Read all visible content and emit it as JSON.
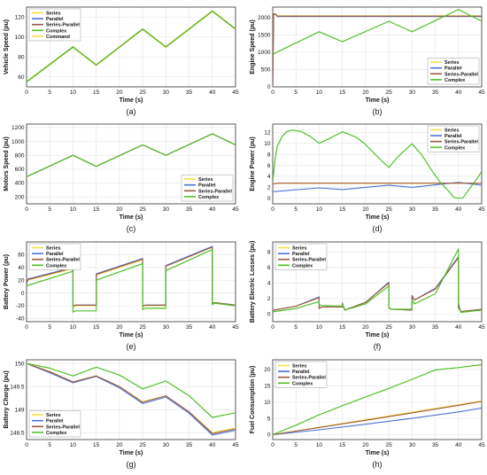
{
  "figure": {
    "xlabel": "Time (s)",
    "xticks": [
      "0",
      "5",
      "10",
      "15",
      "20",
      "25",
      "30",
      "35",
      "40",
      "45"
    ]
  },
  "colors": {
    "Command": "#f5e04a",
    "Series": "#f5e04a",
    "Parallel": "#4a72d8",
    "Series-Parallel": "#9c5a3c",
    "Complex": "#52bf2a"
  },
  "chart_data": [
    {
      "id": "a",
      "panel_label": "(a)",
      "type": "line",
      "ylabel": "Vehicle Speed (pu)",
      "xlim": [
        0,
        45
      ],
      "ylim": [
        50,
        130
      ],
      "yticks": [
        "60",
        "80",
        "100",
        "120"
      ],
      "grid": true,
      "series": [
        {
          "name": "Command",
          "x": [
            0,
            10,
            15,
            25,
            30,
            40,
            45
          ],
          "y": [
            55,
            90,
            72,
            108,
            90,
            126,
            108
          ]
        },
        {
          "name": "Series",
          "x": [
            0,
            10,
            15,
            25,
            30,
            40,
            45
          ],
          "y": [
            55,
            90,
            72,
            108,
            90,
            126,
            108
          ]
        },
        {
          "name": "Parallel",
          "x": [
            0,
            10,
            15,
            25,
            30,
            40,
            45
          ],
          "y": [
            55,
            90,
            72,
            108,
            90,
            126,
            108
          ]
        },
        {
          "name": "Series-Parallel",
          "x": [
            0,
            10,
            15,
            25,
            30,
            40,
            45
          ],
          "y": [
            55,
            90,
            72,
            108,
            90,
            126,
            108
          ]
        },
        {
          "name": "Complex",
          "x": [
            0,
            10,
            15,
            25,
            30,
            40,
            45
          ],
          "y": [
            55,
            90,
            72,
            108,
            90,
            126,
            108
          ]
        }
      ]
    },
    {
      "id": "b",
      "panel_label": "(b)",
      "type": "line",
      "ylabel": "Engine Speed (pu)",
      "xlim": [
        0,
        45
      ],
      "ylim": [
        0,
        2300
      ],
      "yticks": [
        "0",
        "500",
        "1000",
        "1500",
        "2000"
      ],
      "grid": true,
      "series": [
        {
          "name": "Series",
          "x": [
            0,
            0.2,
            0.5,
            1,
            45
          ],
          "y": [
            0,
            2100,
            2120,
            2050,
            2050
          ]
        },
        {
          "name": "Parallel",
          "x": [
            0,
            0.2,
            0.5,
            1,
            45
          ],
          "y": [
            0,
            2080,
            2100,
            2030,
            2030
          ]
        },
        {
          "name": "Series-Parallel",
          "x": [
            0,
            0.2,
            0.5,
            1,
            45
          ],
          "y": [
            0,
            2090,
            2110,
            2040,
            2040
          ]
        },
        {
          "name": "Complex",
          "x": [
            0,
            10,
            15,
            25,
            30,
            40,
            45
          ],
          "y": [
            940,
            1590,
            1300,
            1890,
            1590,
            2230,
            1890
          ]
        }
      ]
    },
    {
      "id": "c",
      "panel_label": "(c)",
      "type": "line",
      "ylabel": "Motors Speed (pu)",
      "xlim": [
        0,
        45
      ],
      "ylim": [
        100,
        1250
      ],
      "yticks": [
        "200",
        "400",
        "600",
        "800",
        "1000",
        "1200"
      ],
      "grid": true,
      "series": [
        {
          "name": "Series",
          "x": [
            0,
            10,
            15,
            25,
            30,
            40,
            45
          ],
          "y": [
            490,
            800,
            640,
            950,
            800,
            1110,
            950
          ]
        },
        {
          "name": "Parallel",
          "x": [
            0,
            10,
            15,
            25,
            30,
            40,
            45
          ],
          "y": [
            490,
            800,
            640,
            950,
            800,
            1110,
            950
          ]
        },
        {
          "name": "Series-Parallel",
          "x": [
            0,
            10,
            15,
            25,
            30,
            40,
            45
          ],
          "y": [
            490,
            800,
            640,
            950,
            800,
            1110,
            950
          ]
        },
        {
          "name": "Complex",
          "x": [
            0,
            10,
            15,
            25,
            30,
            40,
            45
          ],
          "y": [
            490,
            800,
            640,
            950,
            800,
            1110,
            950
          ]
        }
      ]
    },
    {
      "id": "d",
      "panel_label": "(d)",
      "type": "line",
      "ylabel": "Engine Power (pu)",
      "xlim": [
        0,
        45
      ],
      "ylim": [
        -1,
        13.5
      ],
      "yticks": [
        "0",
        "2",
        "4",
        "6",
        "8",
        "10",
        "12"
      ],
      "grid": true,
      "series": [
        {
          "name": "Series",
          "x": [
            0,
            1,
            45
          ],
          "y": [
            2.6,
            2.7,
            2.7
          ]
        },
        {
          "name": "Parallel",
          "x": [
            0,
            10,
            15,
            25,
            30,
            40,
            45
          ],
          "y": [
            1.2,
            1.9,
            1.6,
            2.4,
            2.0,
            2.9,
            2.4
          ]
        },
        {
          "name": "Series-Parallel",
          "x": [
            0,
            1,
            45
          ],
          "y": [
            2.6,
            2.75,
            2.75
          ]
        },
        {
          "name": "Complex",
          "x": [
            0,
            0.5,
            1,
            2,
            3,
            4,
            6,
            8,
            10,
            12,
            15,
            18,
            20,
            22,
            25,
            27,
            30,
            32,
            34,
            36,
            38,
            39,
            40,
            41,
            42,
            44,
            45
          ],
          "y": [
            3,
            7,
            9.5,
            11.2,
            12.1,
            12.4,
            12.2,
            11.3,
            10,
            10.8,
            12.1,
            11.1,
            9.8,
            8,
            5.6,
            7.6,
            9.9,
            8,
            5.4,
            3,
            1.2,
            0.2,
            0,
            0.1,
            1.3,
            3.6,
            4.9
          ]
        }
      ]
    },
    {
      "id": "e",
      "panel_label": "(e)",
      "type": "line",
      "ylabel": "Battery Power (pu)",
      "xlim": [
        0,
        45
      ],
      "ylim": [
        -45,
        80
      ],
      "yticks": [
        "-40",
        "-20",
        "0",
        "20",
        "40",
        "60"
      ],
      "grid": true,
      "series": [
        {
          "name": "Series",
          "x": [
            0,
            0.3,
            10,
            10,
            10.5,
            15,
            15,
            25,
            25,
            25.5,
            30,
            30,
            40,
            40,
            40.5,
            45
          ],
          "y": [
            15,
            20,
            38,
            -22,
            -20,
            -20,
            28,
            52,
            -22,
            -20,
            -20,
            42,
            72,
            -18,
            -16,
            -20
          ]
        },
        {
          "name": "Parallel",
          "x": [
            0,
            0.3,
            10,
            10,
            10.5,
            15,
            15,
            25,
            25,
            25.5,
            30,
            30,
            40,
            40,
            40.5,
            45
          ],
          "y": [
            15,
            22,
            40,
            -21,
            -19,
            -19,
            30,
            54,
            -21,
            -19,
            -19,
            43,
            73,
            -17,
            -15,
            -19
          ]
        },
        {
          "name": "Series-Parallel",
          "x": [
            0,
            0.3,
            10,
            10,
            10.5,
            15,
            15,
            25,
            25,
            25.5,
            30,
            30,
            40,
            40,
            40.5,
            45
          ],
          "y": [
            15,
            21,
            39,
            -21,
            -19,
            -19,
            29,
            53,
            -21,
            -19,
            -19,
            42,
            72,
            -17,
            -15,
            -19
          ]
        },
        {
          "name": "Complex",
          "x": [
            0,
            0.3,
            10,
            10,
            10.5,
            15,
            15,
            25,
            25,
            25.5,
            30,
            30,
            40,
            40,
            40.5,
            45
          ],
          "y": [
            10,
            12,
            34,
            -30,
            -28,
            -28,
            20,
            46,
            -26,
            -24,
            -24,
            35,
            68,
            -18,
            -16,
            -20
          ]
        }
      ]
    },
    {
      "id": "f",
      "panel_label": "(f)",
      "type": "line",
      "ylabel": "Battery Electric Losses (pu)",
      "xlim": [
        0,
        45
      ],
      "ylim": [
        -1,
        9.3
      ],
      "yticks": [
        "0",
        "2",
        "4",
        "6",
        "8"
      ],
      "grid": true,
      "series": [
        {
          "name": "Series",
          "x": [
            0,
            0.3,
            5,
            10,
            10,
            10.5,
            15,
            15,
            15.5,
            20,
            25,
            25,
            25.5,
            30,
            30,
            30.5,
            35,
            40,
            40,
            40.5,
            45
          ],
          "y": [
            0.4,
            0.5,
            1.0,
            2.1,
            0.7,
            0.9,
            0.9,
            1.4,
            0.5,
            1.5,
            4.0,
            0.8,
            0.6,
            0.5,
            2.3,
            1.8,
            3.2,
            7.3,
            0.8,
            0.3,
            0.6
          ]
        },
        {
          "name": "Parallel",
          "x": [
            0,
            0.3,
            5,
            10,
            10,
            10.5,
            15,
            15,
            15.5,
            20,
            25,
            25,
            25.5,
            30,
            30,
            30.5,
            35,
            40,
            40,
            40.5,
            45
          ],
          "y": [
            0.4,
            0.5,
            1.0,
            2.2,
            0.7,
            0.9,
            0.9,
            1.4,
            0.5,
            1.5,
            4.1,
            0.8,
            0.6,
            0.5,
            2.4,
            1.8,
            3.3,
            7.4,
            0.8,
            0.3,
            0.6
          ]
        },
        {
          "name": "Series-Parallel",
          "x": [
            0,
            0.3,
            5,
            10,
            10,
            10.5,
            15,
            15,
            15.5,
            20,
            25,
            25,
            25.5,
            30,
            30,
            30.5,
            35,
            40,
            40,
            40.5,
            45
          ],
          "y": [
            0.4,
            0.5,
            1.0,
            2.1,
            0.7,
            0.9,
            0.9,
            1.4,
            0.5,
            1.5,
            4.0,
            0.8,
            0.6,
            0.5,
            2.3,
            1.8,
            3.2,
            7.3,
            0.8,
            0.3,
            0.6
          ]
        },
        {
          "name": "Complex",
          "x": [
            0,
            0.3,
            5,
            10,
            10,
            10.5,
            15,
            15,
            15.5,
            20,
            25,
            25,
            25.5,
            30,
            30,
            30.5,
            35,
            40,
            40,
            40.5,
            45
          ],
          "y": [
            0.2,
            0.3,
            0.7,
            1.6,
            1.2,
            1.1,
            1.0,
            1.3,
            0.5,
            1.3,
            3.6,
            0.9,
            0.6,
            0.6,
            1.8,
            1.3,
            2.6,
            8.4,
            1.5,
            0.2,
            0.5
          ]
        }
      ]
    },
    {
      "id": "g",
      "panel_label": "(g)",
      "type": "line",
      "ylabel": "Battery Charge (pu)",
      "xlim": [
        0,
        45
      ],
      "ylim": [
        148.35,
        150.08
      ],
      "yticks": [
        "148.5",
        "149",
        "149.5",
        "150"
      ],
      "grid": true,
      "series": [
        {
          "name": "Series",
          "x": [
            0,
            5,
            10,
            15,
            20,
            25,
            30,
            35,
            40,
            45
          ],
          "y": [
            150.0,
            149.83,
            149.6,
            149.73,
            149.5,
            149.17,
            149.3,
            148.95,
            148.5,
            148.6
          ]
        },
        {
          "name": "Parallel",
          "x": [
            0,
            5,
            10,
            15,
            20,
            25,
            30,
            35,
            40,
            45
          ],
          "y": [
            150.0,
            149.8,
            149.58,
            149.72,
            149.47,
            149.13,
            149.27,
            148.92,
            148.45,
            148.55
          ]
        },
        {
          "name": "Series-Parallel",
          "x": [
            0,
            5,
            10,
            15,
            20,
            25,
            30,
            35,
            40,
            45
          ],
          "y": [
            150.0,
            149.82,
            149.6,
            149.73,
            149.5,
            149.16,
            149.3,
            148.95,
            148.48,
            148.58
          ]
        },
        {
          "name": "Complex",
          "x": [
            0,
            5,
            10,
            15,
            20,
            25,
            30,
            35,
            40,
            45
          ],
          "y": [
            150.0,
            149.9,
            149.73,
            149.92,
            149.75,
            149.45,
            149.62,
            149.3,
            148.83,
            148.93
          ]
        }
      ]
    },
    {
      "id": "h",
      "panel_label": "(h)",
      "type": "line",
      "ylabel": "Fuel Consumption (pu)",
      "xlim": [
        0,
        45
      ],
      "ylim": [
        -1.5,
        23
      ],
      "yticks": [
        "0",
        "5",
        "10",
        "15",
        "20"
      ],
      "grid": true,
      "series": [
        {
          "name": "Series",
          "x": [
            0,
            10,
            20,
            30,
            40,
            45
          ],
          "y": [
            0,
            2.3,
            4.6,
            6.9,
            9.2,
            10.4
          ]
        },
        {
          "name": "Parallel",
          "x": [
            0,
            10,
            20,
            30,
            40,
            45
          ],
          "y": [
            0,
            1.5,
            3.2,
            5.0,
            7.0,
            8.2
          ]
        },
        {
          "name": "Series-Parallel",
          "x": [
            0,
            10,
            20,
            30,
            40,
            45
          ],
          "y": [
            0,
            2.2,
            4.4,
            6.7,
            9.0,
            10.2
          ]
        },
        {
          "name": "Complex",
          "x": [
            0,
            5,
            10,
            15,
            20,
            25,
            30,
            35,
            40,
            45
          ],
          "y": [
            0,
            2.9,
            6.1,
            8.9,
            11.6,
            14.2,
            17.0,
            19.9,
            20.6,
            21.5
          ]
        }
      ]
    }
  ]
}
